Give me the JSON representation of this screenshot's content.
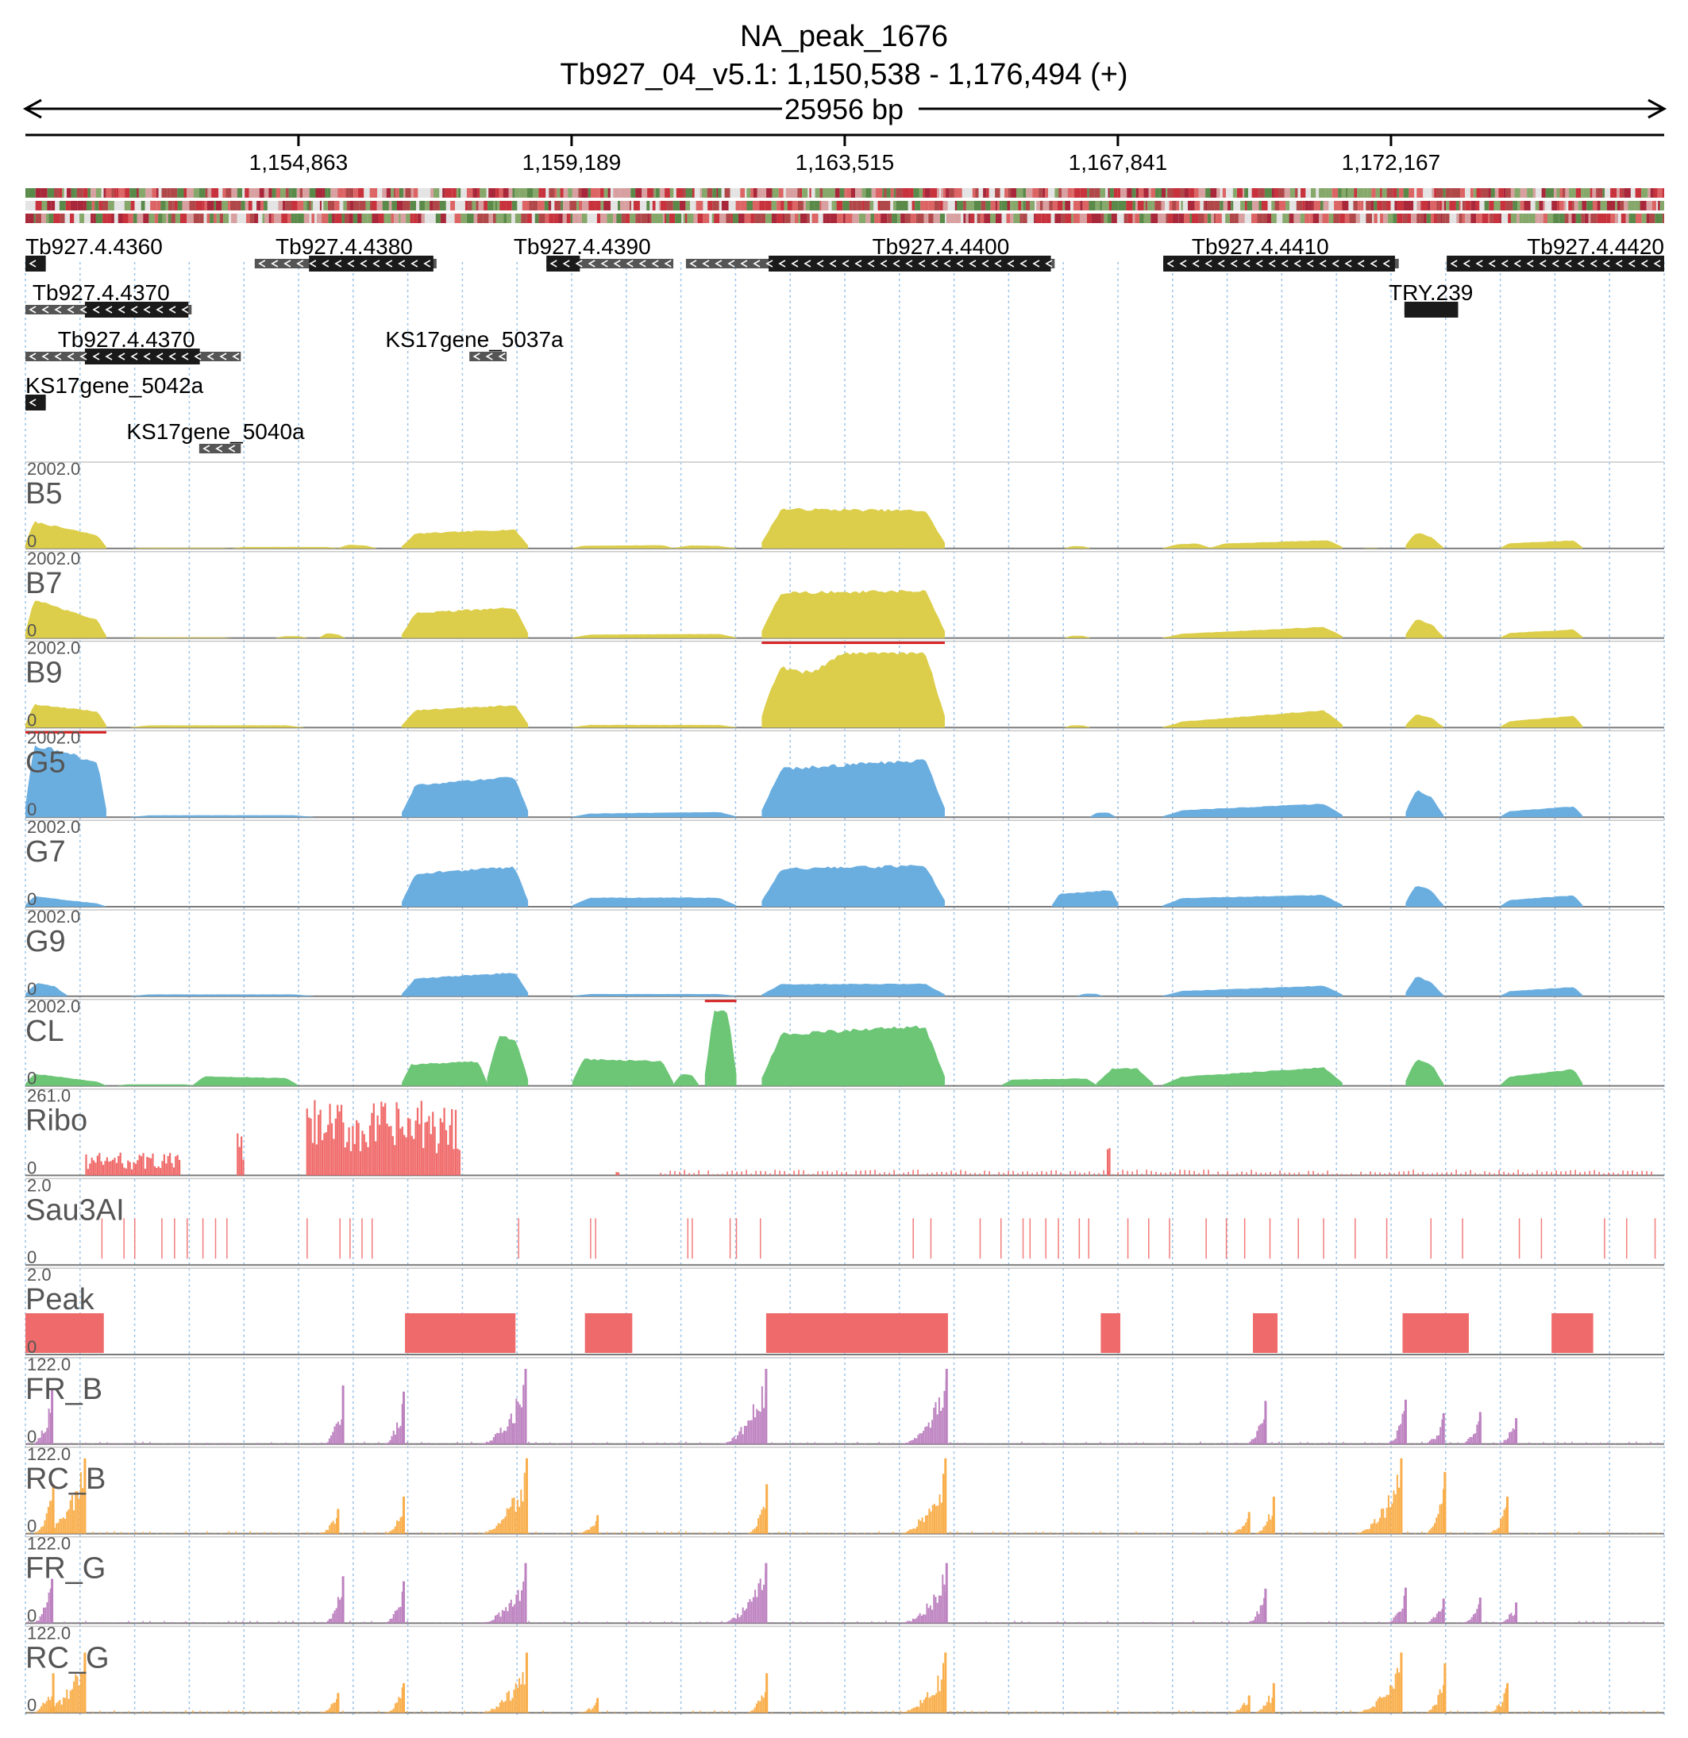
{
  "header": {
    "title": "NA_peak_1676",
    "region": "Tb927_04_v5.1: 1,150,538 - 1,176,494 (+)",
    "span": "25956 bp"
  },
  "chart_data": {
    "type": "genome_browser",
    "region": {
      "chrom": "Tb927_04_v5.1",
      "start": 1150538,
      "end": 1176494,
      "strand": "+"
    },
    "ruler_ticks": [
      {
        "pos": 1154863,
        "label": "1,154,863"
      },
      {
        "pos": 1159189,
        "label": "1,159,189"
      },
      {
        "pos": 1163515,
        "label": "1,163,515"
      },
      {
        "pos": 1167841,
        "label": "1,167,841"
      },
      {
        "pos": 1172167,
        "label": "1,172,167"
      }
    ],
    "colors": {
      "B": "#dcce4a",
      "G": "#6aaee0",
      "CL": "#6cc676",
      "Ribo": "#f06a6a",
      "Sau3AI": "#f27c7c",
      "Peak": "#ef6b6b",
      "FR": "#bd82c0",
      "RC": "#f9ae4b",
      "clip": "#d62020",
      "gene": "#1a1a1a",
      "utr": "#555555",
      "grid": "#9cc3e6"
    },
    "genes": [
      {
        "name": "Tb927.4.4360",
        "row": 0,
        "start": 1150538,
        "end": 1150860,
        "cds": [
          1150538,
          1150860
        ],
        "strand": "-"
      },
      {
        "name": "Tb927.4.4380",
        "row": 0,
        "start": 1154170,
        "end": 1157050,
        "cds": [
          1155030,
          1157000
        ],
        "strand": "-"
      },
      {
        "name": "Tb927.4.4390",
        "row": 0,
        "start": 1158790,
        "end": 1160800,
        "cds": [
          1158790,
          1159320
        ],
        "strand": "-"
      },
      {
        "name": "Tb927.4.4400",
        "row": 0,
        "start": 1161000,
        "end": 1166840,
        "cds": [
          1162310,
          1166780
        ],
        "strand": "-"
      },
      {
        "name": "Tb927.4.4410",
        "row": 0,
        "start": 1168560,
        "end": 1172290,
        "cds": [
          1168560,
          1172230
        ],
        "strand": "-"
      },
      {
        "name": "Tb927.4.4420",
        "row": 0,
        "start": 1173050,
        "end": 1176494,
        "cds": [
          1173050,
          1176494
        ],
        "strand": "-"
      },
      {
        "name": "Tb927.4.4370",
        "row": 1,
        "start": 1150538,
        "end": 1153170,
        "cds": [
          1151480,
          1153120
        ],
        "strand": "-"
      },
      {
        "name": "TRY.239",
        "row": 1,
        "start": 1172380,
        "end": 1173230,
        "cds": [
          1172380,
          1173230
        ],
        "strand": "none"
      },
      {
        "name": "Tb927.4.4370",
        "row": 2,
        "start": 1150538,
        "end": 1153950,
        "cds": [
          1151480,
          1153300
        ],
        "strand": "-"
      },
      {
        "name": "KS17gene_5037a",
        "row": 2,
        "start": 1157570,
        "end": 1158160,
        "cds": [],
        "strand": "-"
      },
      {
        "name": "KS17gene_5042a",
        "row": 3,
        "start": 1150538,
        "end": 1150860,
        "cds": [
          1150538,
          1150860
        ],
        "strand": "-"
      },
      {
        "name": "KS17gene_5040a",
        "row": 4,
        "start": 1153290,
        "end": 1153950,
        "cds": [],
        "strand": "-"
      }
    ],
    "tracks": [
      {
        "name": "B5",
        "max": "2002.0",
        "min": "0",
        "color": "B",
        "kind": "area"
      },
      {
        "name": "B7",
        "max": "2002.0",
        "min": "0",
        "color": "B",
        "kind": "area"
      },
      {
        "name": "B9",
        "max": "2002.0",
        "min": "0",
        "color": "B",
        "kind": "area"
      },
      {
        "name": "G5",
        "max": "2002.0",
        "min": "0",
        "color": "G",
        "kind": "area"
      },
      {
        "name": "G7",
        "max": "2002.0",
        "min": "0",
        "color": "G",
        "kind": "area"
      },
      {
        "name": "G9",
        "max": "2002.0",
        "min": "0",
        "color": "G",
        "kind": "area"
      },
      {
        "name": "CL",
        "max": "2002.0",
        "min": "0",
        "color": "CL",
        "kind": "area"
      },
      {
        "name": "Ribo",
        "max": "261.0",
        "min": "0",
        "color": "Ribo",
        "kind": "spikes"
      },
      {
        "name": "Sau3AI",
        "max": "2.0",
        "min": "0",
        "color": "Sau3AI",
        "kind": "sites"
      },
      {
        "name": "Peak",
        "max": "2.0",
        "min": "0",
        "color": "Peak",
        "kind": "blocks"
      },
      {
        "name": "FR_B",
        "max": "122.0",
        "min": "0",
        "color": "FR",
        "kind": "spikes"
      },
      {
        "name": "RC_B",
        "max": "122.0",
        "min": "0",
        "color": "RC",
        "kind": "spikes"
      },
      {
        "name": "FR_G",
        "max": "122.0",
        "min": "0",
        "color": "FR",
        "kind": "spikes"
      },
      {
        "name": "RC_G",
        "max": "122.0",
        "min": "0",
        "color": "RC",
        "kind": "spikes"
      }
    ],
    "segments": {
      "B5": [
        [
          1150538,
          1151820,
          760,
          300
        ],
        [
          1152200,
          1153800,
          20,
          20
        ],
        [
          1153800,
          1155500,
          40,
          40
        ],
        [
          1155500,
          1156100,
          120,
          60
        ],
        [
          1156500,
          1158500,
          380,
          520
        ],
        [
          1159200,
          1160800,
          70,
          90
        ],
        [
          1160800,
          1161800,
          90,
          60
        ],
        [
          1162200,
          1165100,
          1050,
          1000
        ],
        [
          1167000,
          1167400,
          60,
          60
        ],
        [
          1168550,
          1169300,
          90,
          150
        ],
        [
          1169300,
          1171400,
          120,
          230
        ],
        [
          1171700,
          1172000,
          10,
          10
        ],
        [
          1172400,
          1173000,
          520,
          200
        ],
        [
          1173900,
          1175200,
          130,
          220
        ]
      ],
      "B7": [
        [
          1150538,
          1151820,
          1080,
          400
        ],
        [
          1152200,
          1153800,
          20,
          20
        ],
        [
          1154500,
          1155000,
          50,
          50
        ],
        [
          1155200,
          1155600,
          150,
          80
        ],
        [
          1156500,
          1158500,
          650,
          820
        ],
        [
          1159200,
          1161800,
          90,
          110
        ],
        [
          1162200,
          1165100,
          1200,
          1250
        ],
        [
          1167000,
          1167400,
          60,
          60
        ],
        [
          1168550,
          1171400,
          90,
          320
        ],
        [
          1172400,
          1173000,
          600,
          260
        ],
        [
          1173900,
          1175200,
          120,
          240
        ]
      ],
      "B9": [
        [
          1150538,
          1151820,
          640,
          400
        ],
        [
          1152200,
          1154950,
          60,
          60
        ],
        [
          1156500,
          1158500,
          440,
          620
        ],
        [
          1159200,
          1161800,
          70,
          70
        ],
        [
          1162200,
          1165100,
          2002,
          2002
        ],
        [
          1167000,
          1167400,
          60,
          60
        ],
        [
          1168550,
          1171400,
          120,
          500
        ],
        [
          1172400,
          1173000,
          420,
          180
        ],
        [
          1173900,
          1175200,
          150,
          330
        ]
      ],
      "G5": [
        [
          1150538,
          1151820,
          2002,
          1400
        ],
        [
          1152200,
          1155100,
          50,
          50
        ],
        [
          1156500,
          1158500,
          820,
          1100
        ],
        [
          1159200,
          1161800,
          90,
          140
        ],
        [
          1162200,
          1165100,
          1250,
          1550
        ],
        [
          1167400,
          1167800,
          120,
          120
        ],
        [
          1168550,
          1171400,
          160,
          380
        ],
        [
          1172400,
          1173000,
          850,
          380
        ],
        [
          1173900,
          1175200,
          140,
          300
        ]
      ],
      "G7": [
        [
          1150538,
          1151820,
          300,
          60
        ],
        [
          1156500,
          1158500,
          860,
          1080
        ],
        [
          1159200,
          1161800,
          240,
          240
        ],
        [
          1162200,
          1165100,
          1000,
          1100
        ],
        [
          1166800,
          1167850,
          330,
          450
        ],
        [
          1168550,
          1171400,
          220,
          320
        ],
        [
          1172400,
          1173000,
          700,
          300
        ],
        [
          1173900,
          1175200,
          160,
          320
        ]
      ],
      "G9": [
        [
          1150538,
          1151200,
          420,
          200
        ],
        [
          1152200,
          1155100,
          50,
          50
        ],
        [
          1156500,
          1158500,
          450,
          650
        ],
        [
          1159200,
          1161800,
          60,
          60
        ],
        [
          1162200,
          1165100,
          320,
          330
        ],
        [
          1167200,
          1167600,
          70,
          70
        ],
        [
          1168550,
          1171400,
          120,
          300
        ],
        [
          1172400,
          1173000,
          650,
          230
        ],
        [
          1173900,
          1175200,
          120,
          260
        ]
      ],
      "CL": [
        [
          1150538,
          1151820,
          350,
          80
        ],
        [
          1152000,
          1153200,
          40,
          40
        ],
        [
          1153200,
          1154850,
          260,
          200
        ],
        [
          1156500,
          1157850,
          560,
          660
        ],
        [
          1157850,
          1158500,
          1400,
          1150
        ],
        [
          1159200,
          1160800,
          720,
          640
        ],
        [
          1160800,
          1161200,
          300,
          300
        ],
        [
          1161300,
          1161800,
          2002,
          2002
        ],
        [
          1162200,
          1165100,
          1350,
          1600
        ],
        [
          1166000,
          1167500,
          160,
          200
        ],
        [
          1167500,
          1168400,
          460,
          460
        ],
        [
          1168550,
          1171400,
          210,
          520
        ],
        [
          1172400,
          1173000,
          820,
          420
        ],
        [
          1173900,
          1175200,
          210,
          470
        ]
      ]
    },
    "ribo_active": [
      [
        1151500,
        1153000,
        80
      ],
      [
        1153900,
        1154000,
        150
      ],
      [
        1155000,
        1157420,
        261
      ],
      [
        1159900,
        1159960,
        40
      ],
      [
        1167680,
        1167740,
        110
      ]
    ],
    "sau3ai_sites": [
      1151750,
      1152100,
      1152270,
      1152700,
      1152900,
      1153100,
      1153350,
      1153550,
      1153730,
      1155000,
      1155520,
      1155680,
      1155870,
      1156030,
      1158350,
      1159490,
      1159570,
      1161030,
      1161100,
      1161700,
      1161800,
      1162180,
      1164600,
      1164880,
      1165660,
      1165990,
      1166340,
      1166450,
      1166700,
      1166900,
      1167230,
      1167380,
      1168000,
      1168330,
      1168660,
      1169240,
      1169560,
      1169850,
      1170250,
      1170700,
      1171100,
      1171600,
      1172100,
      1172800,
      1173300,
      1174200,
      1174550,
      1175550,
      1175900,
      1176350
    ],
    "peaks": [
      [
        1150538,
        1151780
      ],
      [
        1156550,
        1158300
      ],
      [
        1159400,
        1160150
      ],
      [
        1162270,
        1165150
      ],
      [
        1167570,
        1167880
      ],
      [
        1169980,
        1170370
      ],
      [
        1172350,
        1173400
      ],
      [
        1174710,
        1175370
      ]
    ],
    "fr_peaks": [
      [
        1150960,
        90
      ],
      [
        1155570,
        95
      ],
      [
        1156530,
        85
      ],
      [
        1158460,
        122
      ],
      [
        1162270,
        122
      ],
      [
        1165130,
        122
      ],
      [
        1170180,
        70
      ],
      [
        1172400,
        72
      ],
      [
        1173000,
        50
      ],
      [
        1173580,
        52
      ],
      [
        1174150,
        42
      ]
    ],
    "rc_peaks": [
      [
        1150980,
        80
      ],
      [
        1151480,
        122
      ],
      [
        1155490,
        40
      ],
      [
        1156530,
        60
      ],
      [
        1158480,
        122
      ],
      [
        1159600,
        30
      ],
      [
        1162280,
        80
      ],
      [
        1165110,
        122
      ],
      [
        1169920,
        35
      ],
      [
        1170310,
        60
      ],
      [
        1172330,
        122
      ],
      [
        1173020,
        100
      ],
      [
        1174010,
        60
      ]
    ]
  }
}
